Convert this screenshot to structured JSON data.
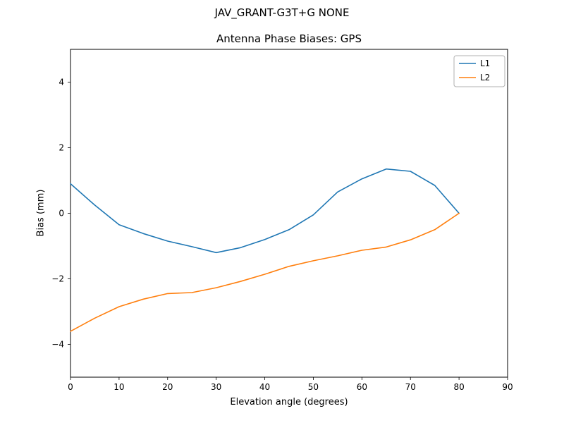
{
  "header": {
    "suptitle": "JAV_GRANT-G3T+G NONE",
    "subtitle": "Antenna Phase Biases: GPS"
  },
  "chart_data": {
    "type": "line",
    "title": "JAV_GRANT-G3T+G NONE",
    "subtitle": "Antenna Phase Biases: GPS",
    "xlabel": "Elevation angle (degrees)",
    "ylabel": "Bias (mm)",
    "xlim": [
      0,
      90
    ],
    "ylim": [
      -5,
      5
    ],
    "xticks": [
      0,
      10,
      20,
      30,
      40,
      50,
      60,
      70,
      80,
      90
    ],
    "yticks": [
      -4,
      -2,
      0,
      2,
      4
    ],
    "grid": false,
    "legend_position": "upper right",
    "x": [
      0,
      5,
      10,
      15,
      20,
      25,
      30,
      35,
      40,
      45,
      50,
      55,
      60,
      65,
      70,
      75,
      80
    ],
    "series": [
      {
        "name": "L1",
        "color": "#1f77b4",
        "values": [
          0.9,
          0.25,
          -0.35,
          -0.62,
          -0.85,
          -1.02,
          -1.2,
          -1.05,
          -0.8,
          -0.5,
          -0.05,
          0.65,
          1.05,
          1.35,
          1.28,
          0.85,
          0.0
        ]
      },
      {
        "name": "L2",
        "color": "#ff7f0e",
        "values": [
          -3.6,
          -3.2,
          -2.85,
          -2.62,
          -2.45,
          -2.42,
          -2.27,
          -2.08,
          -1.86,
          -1.62,
          -1.45,
          -1.3,
          -1.13,
          -1.03,
          -0.81,
          -0.5,
          0.0
        ]
      }
    ]
  }
}
